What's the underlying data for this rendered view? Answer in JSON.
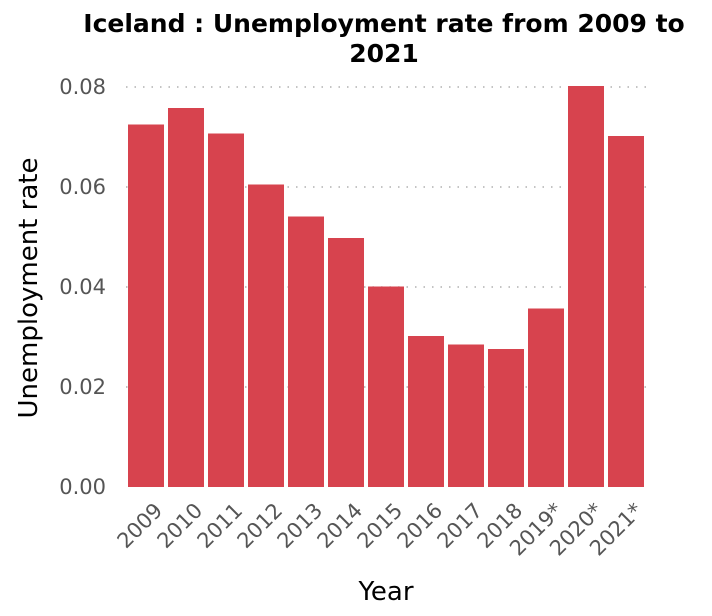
{
  "chart_data": {
    "type": "bar",
    "title_lines": [
      "Iceland : Unemployment rate from 2009 to",
      "2021"
    ],
    "xlabel": "Year",
    "ylabel": "Unemployment rate",
    "categories": [
      "2009",
      "2010",
      "2011",
      "2012",
      "2013",
      "2014",
      "2015",
      "2016",
      "2017",
      "2018",
      "2019*",
      "2020*",
      "2021*"
    ],
    "values": [
      0.0725,
      0.0758,
      0.0707,
      0.0605,
      0.0541,
      0.0498,
      0.0401,
      0.0302,
      0.0285,
      0.0276,
      0.0357,
      0.0802,
      0.0702
    ],
    "ylim": [
      0,
      0.08
    ],
    "yticks": [
      0,
      0.02,
      0.04,
      0.06,
      0.08
    ],
    "ytick_labels": [
      "0.00",
      "0.02",
      "0.04",
      "0.06",
      "0.08"
    ],
    "grid": "horizontal dotted",
    "bar_color": "#d7434e"
  }
}
